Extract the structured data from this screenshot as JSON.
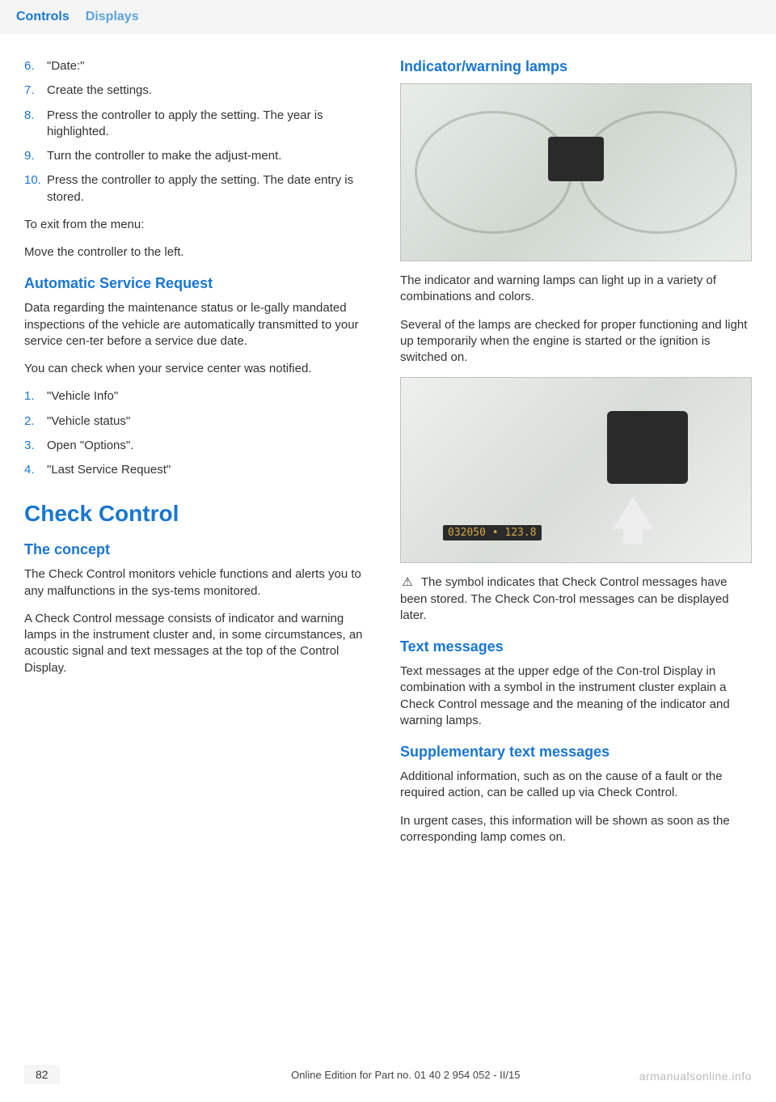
{
  "colors": {
    "accent": "#1976d2",
    "accent_light": "#5aa3e0",
    "text": "#333333",
    "header_bg": "#f5f5f5",
    "footer_bg": "#f5f5f5",
    "white": "#ffffff",
    "watermark": "rgba(120,120,120,0.5)"
  },
  "header": {
    "tab_controls": "Controls",
    "tab_displays": "Displays"
  },
  "left": {
    "steps_top": [
      {
        "n": "6.",
        "t": "\"Date:\""
      },
      {
        "n": "7.",
        "t": "Create the settings."
      },
      {
        "n": "8.",
        "t": "Press the controller to apply the setting. The year is highlighted."
      },
      {
        "n": "9.",
        "t": "Turn the controller to make the adjust‐ment."
      },
      {
        "n": "10.",
        "t": "Press the controller to apply the setting. The date entry is stored."
      }
    ],
    "exit_1": "To exit from the menu:",
    "exit_2": "Move the controller to the left.",
    "asr_head": "Automatic Service Request",
    "asr_p1": "Data regarding the maintenance status or le‐gally mandated inspections of the vehicle are automatically transmitted to your service cen‐ter before a service due date.",
    "asr_p2": "You can check when your service center was notified.",
    "asr_steps": [
      {
        "n": "1.",
        "t": "\"Vehicle Info\""
      },
      {
        "n": "2.",
        "t": "\"Vehicle status\""
      },
      {
        "n": "3.",
        "t": "Open \"Options\"."
      },
      {
        "n": "4.",
        "t": "\"Last Service Request\""
      }
    ],
    "cc_head": "Check Control",
    "concept_head": "The concept",
    "concept_p1": "The Check Control monitors vehicle functions and alerts you to any malfunctions in the sys‐tems monitored.",
    "concept_p2": "A Check Control message consists of indicator and warning lamps in the instrument cluster and, in some circumstances, an acoustic signal and text messages at the top of the Control Display."
  },
  "right": {
    "ind_head": "Indicator/warning lamps",
    "ind_p1": "The indicator and warning lamps can light up in a variety of combinations and colors.",
    "ind_p2": "Several of the lamps are checked for proper functioning and light up temporarily when the engine is started or the ignition is switched on.",
    "symbol_p": " The symbol indicates that Check Control messages have been stored. The Check Con‐trol messages can be displayed later.",
    "symbol_glyph": "⚠",
    "txt_head": "Text messages",
    "txt_p": "Text messages at the upper edge of the Con‐trol Display in combination with a symbol in the instrument cluster explain a Check Control message and the meaning of the indicator and warning lamps.",
    "supp_head": "Supplementary text messages",
    "supp_p1": "Additional information, such as on the cause of a fault or the required action, can be called up via Check Control.",
    "supp_p2": "In urgent cases, this information will be shown as soon as the corresponding lamp comes on.",
    "odo_value": "032050 • 123.8"
  },
  "footer": {
    "page": "82",
    "text": "Online Edition for Part no. 01 40 2 954 052 - II/15"
  },
  "watermark": "armanualsonline.info"
}
